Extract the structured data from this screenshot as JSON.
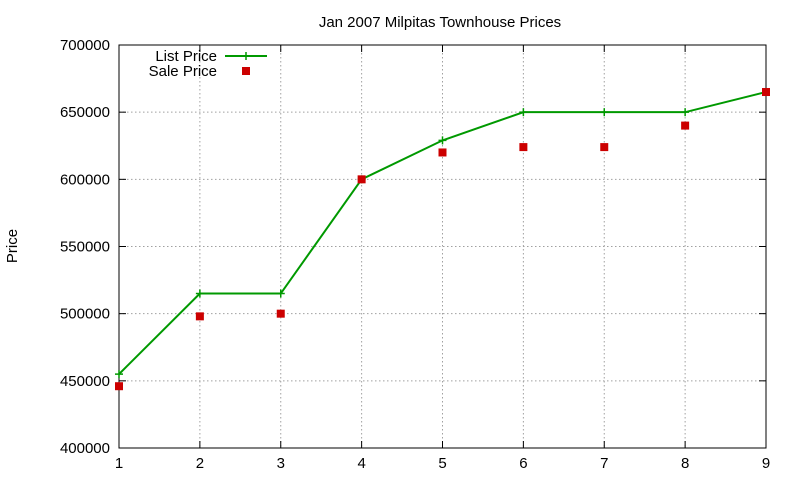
{
  "chart_data": {
    "type": "line",
    "title": "Jan 2007 Milpitas Townhouse Prices",
    "xlabel": "",
    "ylabel": "Price",
    "x": [
      1,
      2,
      3,
      4,
      5,
      6,
      7,
      8,
      9
    ],
    "xlim": [
      1,
      9
    ],
    "ylim": [
      400000,
      700000
    ],
    "xticks": [
      1,
      2,
      3,
      4,
      5,
      6,
      7,
      8,
      9
    ],
    "yticks": [
      400000,
      450000,
      500000,
      550000,
      600000,
      650000,
      700000
    ],
    "grid": true,
    "legend_position": "top-left",
    "series": [
      {
        "name": "List Price",
        "style": "line-with-plus-markers",
        "color": "#009900",
        "values": [
          455000,
          515000,
          515000,
          600000,
          629000,
          650000,
          650000,
          650000,
          665000
        ]
      },
      {
        "name": "Sale Price",
        "style": "square-markers",
        "color": "#cc0000",
        "values": [
          446000,
          498000,
          500000,
          600000,
          620000,
          624000,
          624000,
          640000,
          665000
        ]
      }
    ]
  }
}
